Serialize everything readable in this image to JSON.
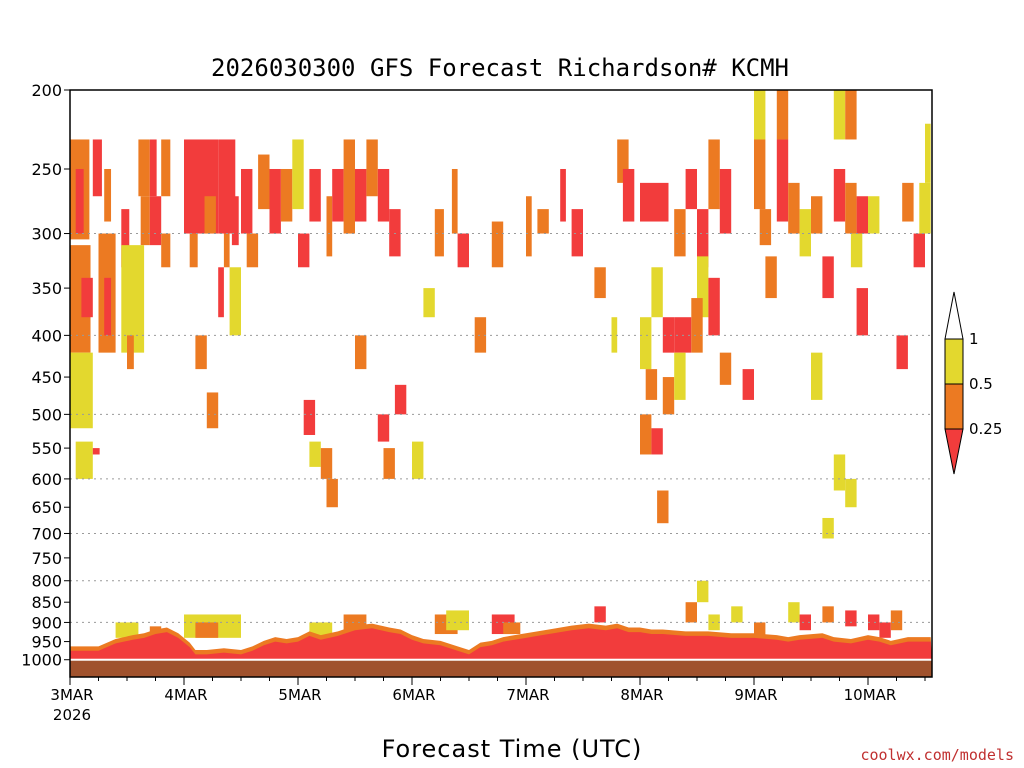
{
  "chart_data": {
    "type": "heatmap",
    "title": "2026030300 GFS Forecast Richardson# KCMH",
    "xlabel": "Forecast Time (UTC)",
    "ylabel": "",
    "x_ticks": [
      "3MAR",
      "4MAR",
      "5MAR",
      "6MAR",
      "7MAR",
      "8MAR",
      "9MAR",
      "10MAR"
    ],
    "x_tick_days": [
      0,
      1,
      2,
      3,
      4,
      5,
      6,
      7
    ],
    "x_year_label": "2026",
    "xlim_days": [
      0,
      7.55
    ],
    "y_ticks": [
      200,
      250,
      300,
      350,
      400,
      450,
      500,
      550,
      600,
      650,
      700,
      750,
      800,
      850,
      900,
      950,
      1000
    ],
    "y_gridlines": [
      300,
      400,
      500,
      600,
      700,
      800,
      900
    ],
    "ylim": [
      200,
      1050
    ],
    "y_scale": "log-pressure (inverted)",
    "colorbar": {
      "levels": [
        "1",
        "0.5",
        "0.25"
      ],
      "colors": {
        "above_1": "#ffffff",
        "0.5-1": "#e3d82e",
        "0.25-0.5": "#ec7a22",
        "below_0.25": "#f23c3c"
      }
    },
    "colors": {
      "yellow": "#e3d82e",
      "orange": "#ec7a22",
      "red": "#f23c3c",
      "ground": "#a0522d"
    },
    "cells": [
      [
        0.0,
        0.17,
        230,
        305,
        "orange"
      ],
      [
        0.05,
        0.12,
        250,
        300,
        "red"
      ],
      [
        0.2,
        0.28,
        230,
        270,
        "red"
      ],
      [
        0.3,
        0.36,
        250,
        290,
        "orange"
      ],
      [
        0.0,
        0.18,
        310,
        420,
        "orange"
      ],
      [
        0.1,
        0.2,
        340,
        380,
        "red"
      ],
      [
        0.25,
        0.4,
        300,
        420,
        "orange"
      ],
      [
        0.3,
        0.36,
        340,
        400,
        "red"
      ],
      [
        0.0,
        0.2,
        420,
        520,
        "yellow"
      ],
      [
        0.05,
        0.2,
        540,
        600,
        "yellow"
      ],
      [
        0.2,
        0.26,
        550,
        560,
        "red"
      ],
      [
        0.45,
        0.52,
        280,
        330,
        "red"
      ],
      [
        0.6,
        0.7,
        230,
        270,
        "orange"
      ],
      [
        0.7,
        0.76,
        230,
        270,
        "red"
      ],
      [
        0.8,
        0.88,
        230,
        270,
        "orange"
      ],
      [
        0.62,
        0.7,
        270,
        310,
        "orange"
      ],
      [
        0.45,
        0.65,
        310,
        420,
        "yellow"
      ],
      [
        0.5,
        0.56,
        400,
        440,
        "orange"
      ],
      [
        0.7,
        0.8,
        270,
        310,
        "red"
      ],
      [
        0.8,
        0.88,
        300,
        330,
        "orange"
      ],
      [
        1.0,
        1.3,
        230,
        300,
        "red"
      ],
      [
        1.05,
        1.12,
        300,
        330,
        "orange"
      ],
      [
        1.18,
        1.28,
        270,
        300,
        "orange"
      ],
      [
        1.3,
        1.45,
        230,
        300,
        "red"
      ],
      [
        1.35,
        1.4,
        300,
        330,
        "orange"
      ],
      [
        1.42,
        1.48,
        270,
        310,
        "red"
      ],
      [
        1.5,
        1.6,
        250,
        300,
        "red"
      ],
      [
        1.55,
        1.65,
        300,
        330,
        "orange"
      ],
      [
        1.1,
        1.2,
        400,
        440,
        "orange"
      ],
      [
        1.2,
        1.3,
        470,
        520,
        "orange"
      ],
      [
        1.3,
        1.35,
        330,
        380,
        "red"
      ],
      [
        1.4,
        1.5,
        330,
        400,
        "yellow"
      ],
      [
        1.65,
        1.75,
        240,
        280,
        "orange"
      ],
      [
        1.75,
        1.85,
        250,
        300,
        "red"
      ],
      [
        1.85,
        1.95,
        250,
        290,
        "orange"
      ],
      [
        1.95,
        2.05,
        230,
        280,
        "yellow"
      ],
      [
        2.0,
        2.1,
        300,
        330,
        "red"
      ],
      [
        2.1,
        2.2,
        250,
        290,
        "red"
      ],
      [
        2.25,
        2.3,
        270,
        320,
        "orange"
      ],
      [
        2.3,
        2.4,
        250,
        290,
        "red"
      ],
      [
        2.05,
        2.15,
        480,
        530,
        "red"
      ],
      [
        2.1,
        2.2,
        540,
        580,
        "yellow"
      ],
      [
        2.2,
        2.3,
        550,
        600,
        "orange"
      ],
      [
        2.25,
        2.35,
        600,
        650,
        "orange"
      ],
      [
        2.4,
        2.5,
        230,
        300,
        "orange"
      ],
      [
        2.5,
        2.6,
        250,
        290,
        "red"
      ],
      [
        2.6,
        2.7,
        230,
        270,
        "orange"
      ],
      [
        2.7,
        2.8,
        250,
        290,
        "red"
      ],
      [
        2.8,
        2.9,
        280,
        320,
        "red"
      ],
      [
        2.5,
        2.6,
        400,
        440,
        "orange"
      ],
      [
        2.7,
        2.8,
        500,
        540,
        "red"
      ],
      [
        2.75,
        2.85,
        550,
        600,
        "orange"
      ],
      [
        3.2,
        3.28,
        280,
        320,
        "orange"
      ],
      [
        3.35,
        3.4,
        250,
        300,
        "orange"
      ],
      [
        3.4,
        3.5,
        300,
        330,
        "red"
      ],
      [
        3.55,
        3.65,
        380,
        420,
        "orange"
      ],
      [
        3.7,
        3.8,
        290,
        330,
        "orange"
      ],
      [
        3.1,
        3.2,
        350,
        380,
        "yellow"
      ],
      [
        3.0,
        3.1,
        540,
        600,
        "yellow"
      ],
      [
        2.85,
        2.95,
        460,
        500,
        "red"
      ],
      [
        4.0,
        4.05,
        270,
        320,
        "orange"
      ],
      [
        4.1,
        4.2,
        280,
        300,
        "orange"
      ],
      [
        4.3,
        4.35,
        250,
        290,
        "red"
      ],
      [
        4.4,
        4.5,
        280,
        320,
        "red"
      ],
      [
        4.6,
        4.7,
        330,
        360,
        "orange"
      ],
      [
        4.8,
        4.9,
        230,
        260,
        "orange"
      ],
      [
        4.85,
        4.95,
        250,
        290,
        "red"
      ],
      [
        4.75,
        4.8,
        380,
        420,
        "yellow"
      ],
      [
        5.0,
        5.25,
        260,
        290,
        "red"
      ],
      [
        5.3,
        5.4,
        280,
        320,
        "orange"
      ],
      [
        5.4,
        5.5,
        250,
        280,
        "red"
      ],
      [
        5.5,
        5.6,
        280,
        330,
        "red"
      ],
      [
        5.6,
        5.7,
        230,
        280,
        "orange"
      ],
      [
        5.7,
        5.8,
        250,
        300,
        "red"
      ],
      [
        5.5,
        5.6,
        320,
        380,
        "yellow"
      ],
      [
        5.6,
        5.7,
        340,
        400,
        "red"
      ],
      [
        5.1,
        5.2,
        330,
        380,
        "yellow"
      ],
      [
        5.2,
        5.3,
        380,
        420,
        "red"
      ],
      [
        5.3,
        5.45,
        380,
        420,
        "red"
      ],
      [
        5.45,
        5.55,
        360,
        420,
        "orange"
      ],
      [
        5.0,
        5.1,
        380,
        440,
        "yellow"
      ],
      [
        5.05,
        5.15,
        440,
        480,
        "orange"
      ],
      [
        5.2,
        5.3,
        450,
        500,
        "orange"
      ],
      [
        5.3,
        5.4,
        420,
        480,
        "yellow"
      ],
      [
        5.7,
        5.8,
        420,
        460,
        "orange"
      ],
      [
        5.9,
        6.0,
        440,
        480,
        "red"
      ],
      [
        6.0,
        6.1,
        200,
        230,
        "yellow"
      ],
      [
        6.0,
        6.1,
        230,
        280,
        "orange"
      ],
      [
        6.05,
        6.15,
        280,
        310,
        "orange"
      ],
      [
        6.1,
        6.2,
        320,
        360,
        "orange"
      ],
      [
        6.2,
        6.3,
        200,
        230,
        "orange"
      ],
      [
        6.2,
        6.3,
        230,
        290,
        "red"
      ],
      [
        6.3,
        6.4,
        260,
        300,
        "orange"
      ],
      [
        6.4,
        6.5,
        280,
        320,
        "yellow"
      ],
      [
        6.5,
        6.6,
        270,
        300,
        "orange"
      ],
      [
        6.6,
        6.7,
        320,
        360,
        "red"
      ],
      [
        6.7,
        6.8,
        200,
        230,
        "yellow"
      ],
      [
        6.8,
        6.9,
        200,
        230,
        "orange"
      ],
      [
        6.9,
        7.0,
        270,
        300,
        "red"
      ],
      [
        7.0,
        7.1,
        270,
        300,
        "yellow"
      ],
      [
        6.7,
        6.8,
        250,
        290,
        "red"
      ],
      [
        6.8,
        6.9,
        260,
        300,
        "orange"
      ],
      [
        6.85,
        6.95,
        300,
        330,
        "yellow"
      ],
      [
        6.9,
        7.0,
        350,
        400,
        "red"
      ],
      [
        6.5,
        6.6,
        420,
        480,
        "yellow"
      ],
      [
        6.7,
        6.8,
        560,
        620,
        "yellow"
      ],
      [
        6.8,
        6.9,
        600,
        650,
        "yellow"
      ],
      [
        6.6,
        6.7,
        670,
        710,
        "yellow"
      ],
      [
        6.3,
        6.4,
        850,
        900,
        "yellow"
      ],
      [
        6.4,
        6.5,
        880,
        920,
        "red"
      ],
      [
        6.6,
        6.7,
        860,
        900,
        "orange"
      ],
      [
        6.8,
        6.9,
        870,
        910,
        "red"
      ],
      [
        7.0,
        7.1,
        880,
        920,
        "red"
      ],
      [
        7.1,
        7.2,
        900,
        940,
        "red"
      ],
      [
        7.2,
        7.3,
        870,
        920,
        "orange"
      ],
      [
        7.25,
        7.35,
        400,
        440,
        "red"
      ],
      [
        7.3,
        7.4,
        260,
        290,
        "orange"
      ],
      [
        7.4,
        7.5,
        300,
        330,
        "red"
      ],
      [
        7.45,
        7.55,
        260,
        300,
        "yellow"
      ],
      [
        7.5,
        7.55,
        220,
        260,
        "yellow"
      ],
      [
        5.0,
        5.1,
        500,
        560,
        "orange"
      ],
      [
        5.1,
        5.2,
        520,
        560,
        "red"
      ],
      [
        5.15,
        5.25,
        620,
        680,
        "orange"
      ],
      [
        5.4,
        5.5,
        850,
        900,
        "orange"
      ],
      [
        5.5,
        5.6,
        800,
        850,
        "yellow"
      ],
      [
        5.6,
        5.7,
        880,
        920,
        "yellow"
      ],
      [
        5.8,
        5.9,
        860,
        900,
        "yellow"
      ],
      [
        6.0,
        6.1,
        900,
        940,
        "orange"
      ],
      [
        1.0,
        1.5,
        880,
        940,
        "yellow"
      ],
      [
        1.1,
        1.3,
        900,
        940,
        "orange"
      ],
      [
        0.4,
        0.6,
        900,
        940,
        "yellow"
      ],
      [
        2.1,
        2.3,
        900,
        940,
        "yellow"
      ],
      [
        3.2,
        3.4,
        880,
        930,
        "orange"
      ],
      [
        3.3,
        3.5,
        870,
        920,
        "yellow"
      ],
      [
        3.7,
        3.9,
        880,
        930,
        "red"
      ],
      [
        3.8,
        3.95,
        900,
        930,
        "orange"
      ],
      [
        0.5,
        0.9,
        940,
        990,
        "red"
      ],
      [
        0.7,
        0.8,
        910,
        950,
        "orange"
      ],
      [
        2.4,
        2.6,
        880,
        930,
        "orange"
      ],
      [
        4.6,
        4.7,
        860,
        900,
        "red"
      ]
    ],
    "bl_columns": [
      [
        0.0,
        975
      ],
      [
        0.25,
        975
      ],
      [
        0.4,
        955
      ],
      [
        0.55,
        945
      ],
      [
        0.65,
        940
      ],
      [
        0.75,
        930
      ],
      [
        0.85,
        925
      ],
      [
        0.95,
        940
      ],
      [
        1.05,
        965
      ],
      [
        1.1,
        985
      ],
      [
        1.2,
        985
      ],
      [
        1.35,
        980
      ],
      [
        1.5,
        985
      ],
      [
        1.6,
        975
      ],
      [
        1.7,
        960
      ],
      [
        1.8,
        950
      ],
      [
        1.9,
        955
      ],
      [
        2.0,
        950
      ],
      [
        2.1,
        935
      ],
      [
        2.2,
        945
      ],
      [
        2.35,
        935
      ],
      [
        2.5,
        920
      ],
      [
        2.65,
        915
      ],
      [
        2.8,
        925
      ],
      [
        2.9,
        930
      ],
      [
        3.0,
        945
      ],
      [
        3.1,
        955
      ],
      [
        3.25,
        960
      ],
      [
        3.4,
        975
      ],
      [
        3.5,
        985
      ],
      [
        3.6,
        965
      ],
      [
        3.7,
        960
      ],
      [
        3.8,
        950
      ],
      [
        3.9,
        945
      ],
      [
        4.0,
        940
      ],
      [
        4.1,
        935
      ],
      [
        4.2,
        930
      ],
      [
        4.4,
        920
      ],
      [
        4.55,
        915
      ],
      [
        4.7,
        920
      ],
      [
        4.8,
        915
      ],
      [
        4.9,
        925
      ],
      [
        5.0,
        925
      ],
      [
        5.1,
        930
      ],
      [
        5.2,
        930
      ],
      [
        5.4,
        935
      ],
      [
        5.6,
        935
      ],
      [
        5.8,
        940
      ],
      [
        6.0,
        940
      ],
      [
        6.2,
        945
      ],
      [
        6.3,
        950
      ],
      [
        6.4,
        945
      ],
      [
        6.6,
        940
      ],
      [
        6.7,
        950
      ],
      [
        6.85,
        955
      ],
      [
        7.0,
        945
      ],
      [
        7.1,
        950
      ],
      [
        7.2,
        960
      ],
      [
        7.35,
        950
      ],
      [
        7.55,
        950
      ]
    ]
  },
  "credit": "coolwx.com/models"
}
